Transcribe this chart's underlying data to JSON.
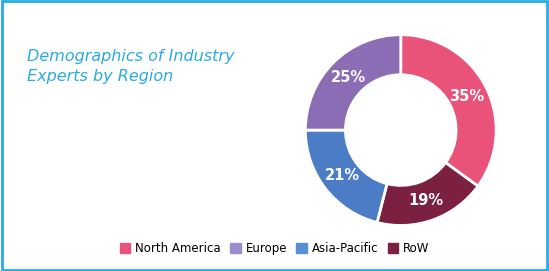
{
  "title": "Demographics of Industry\nExperts by Region",
  "title_color": "#29ABE2",
  "segments": [
    "North America",
    "Europe",
    "Asia-Pacific",
    "RoW"
  ],
  "values": [
    35,
    25,
    21,
    19
  ],
  "colors": [
    "#E9537A",
    "#8B6DB5",
    "#4D7CC7",
    "#7B2040"
  ],
  "pct_labels": [
    "35%",
    "25%",
    "21%",
    "19%"
  ],
  "background_color": "#FFFFFF",
  "border_color": "#29ABE2",
  "legend_labels": [
    "North America",
    "Europe",
    "Asia-Pacific",
    "RoW"
  ],
  "legend_colors": [
    "#E9537A",
    "#9B8DC8",
    "#5B8FD4",
    "#7B2040"
  ]
}
